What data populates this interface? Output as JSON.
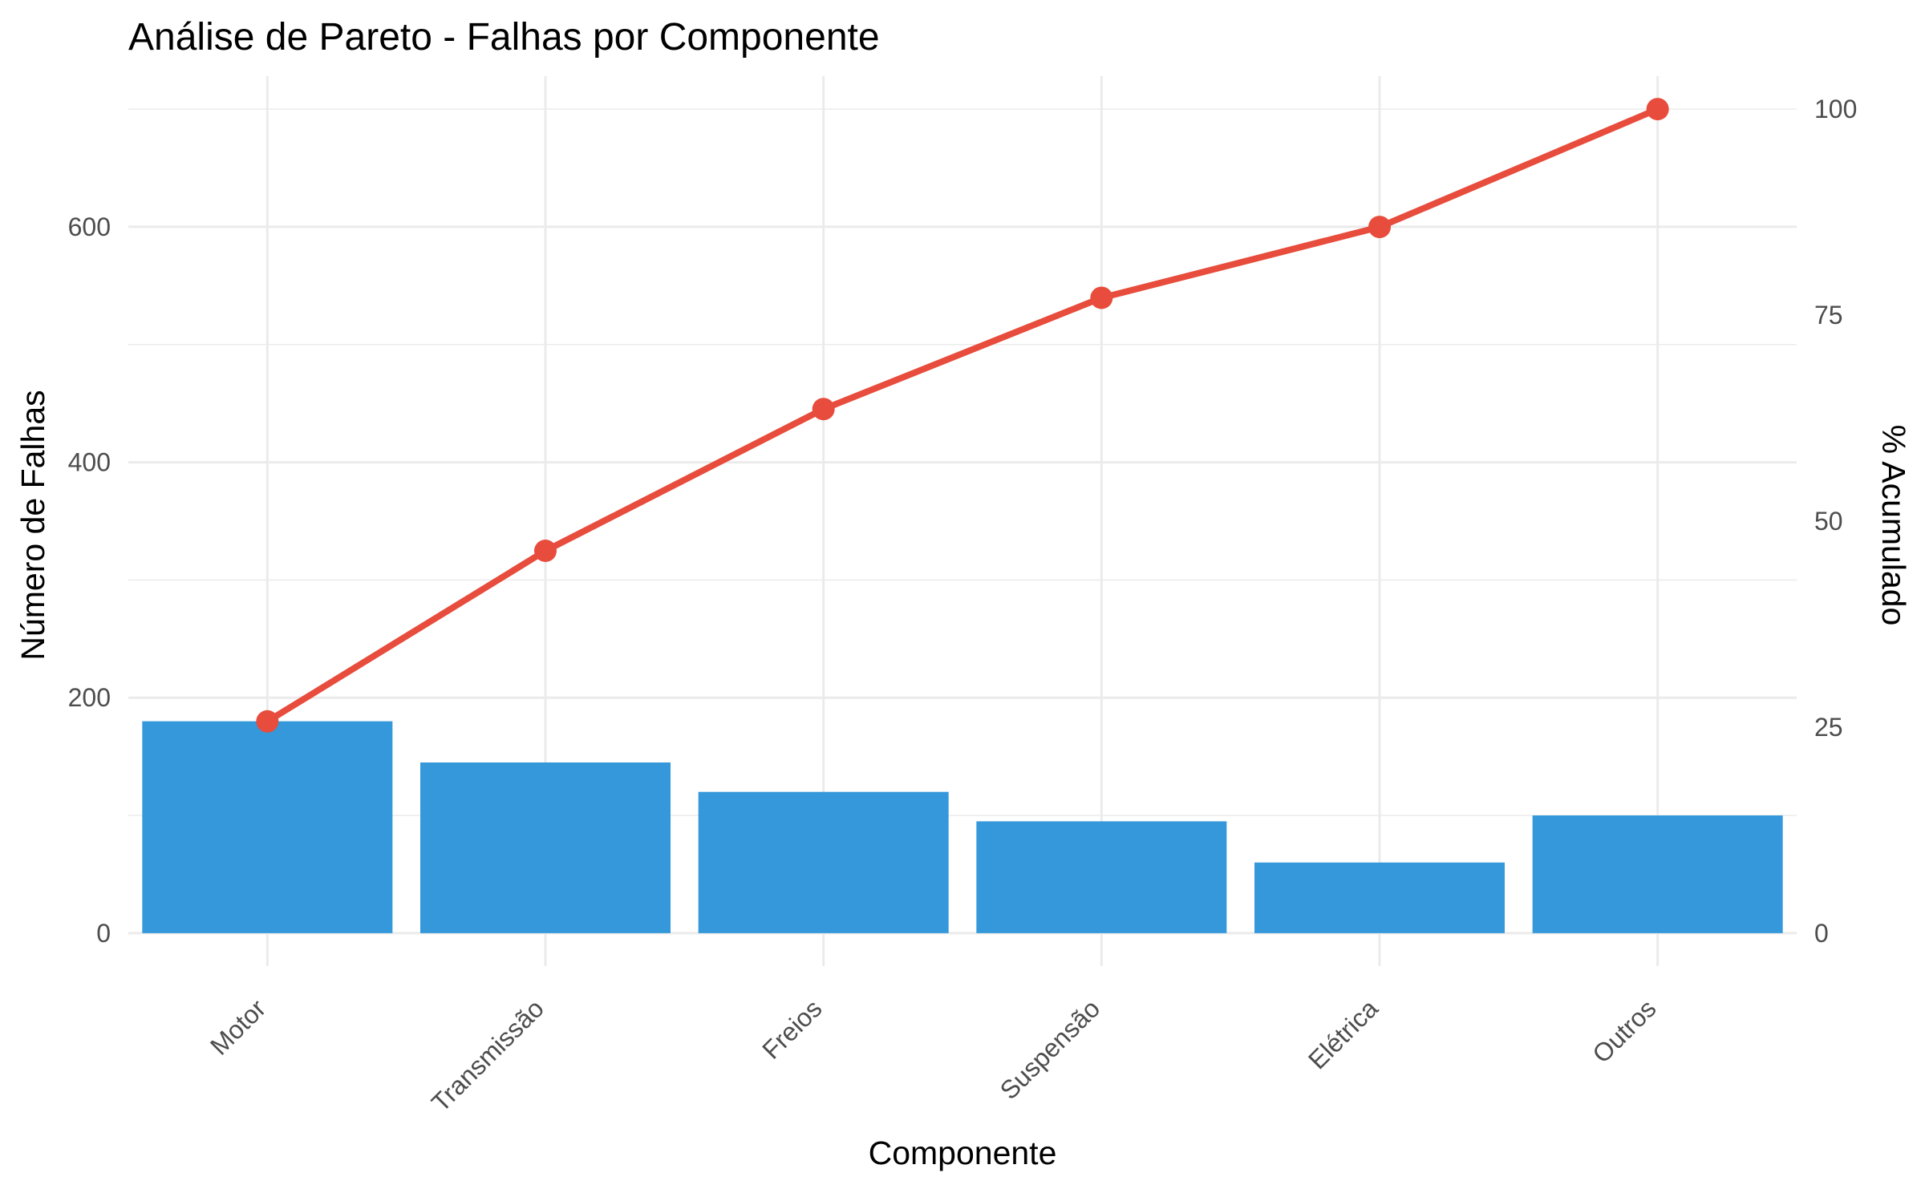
{
  "chart_data": {
    "type": "bar",
    "title": "Análise de Pareto - Falhas por Componente",
    "xlabel": "Componente",
    "ylabel": "Número de Falhas",
    "y2label": "% Acumulado",
    "categories": [
      "Motor",
      "Transmissão",
      "Freios",
      "Suspensão",
      "Elétrica",
      "Outros"
    ],
    "series": [
      {
        "type": "bar",
        "values": [
          180,
          145,
          120,
          95,
          60,
          100
        ]
      },
      {
        "type": "line",
        "axis": "right",
        "values": [
          25.7,
          46.4,
          63.6,
          77.1,
          85.7,
          100
        ]
      }
    ],
    "ylim": [
      -28,
      728
    ],
    "y2lim": [
      -4,
      104
    ],
    "yticks": [
      0,
      200,
      400,
      600
    ],
    "y2ticks": [
      0,
      25,
      50,
      75,
      100
    ],
    "grid": true,
    "colors": {
      "bars": "#3498db",
      "line": "#e74c3c",
      "grid": "#ebebeb"
    }
  }
}
